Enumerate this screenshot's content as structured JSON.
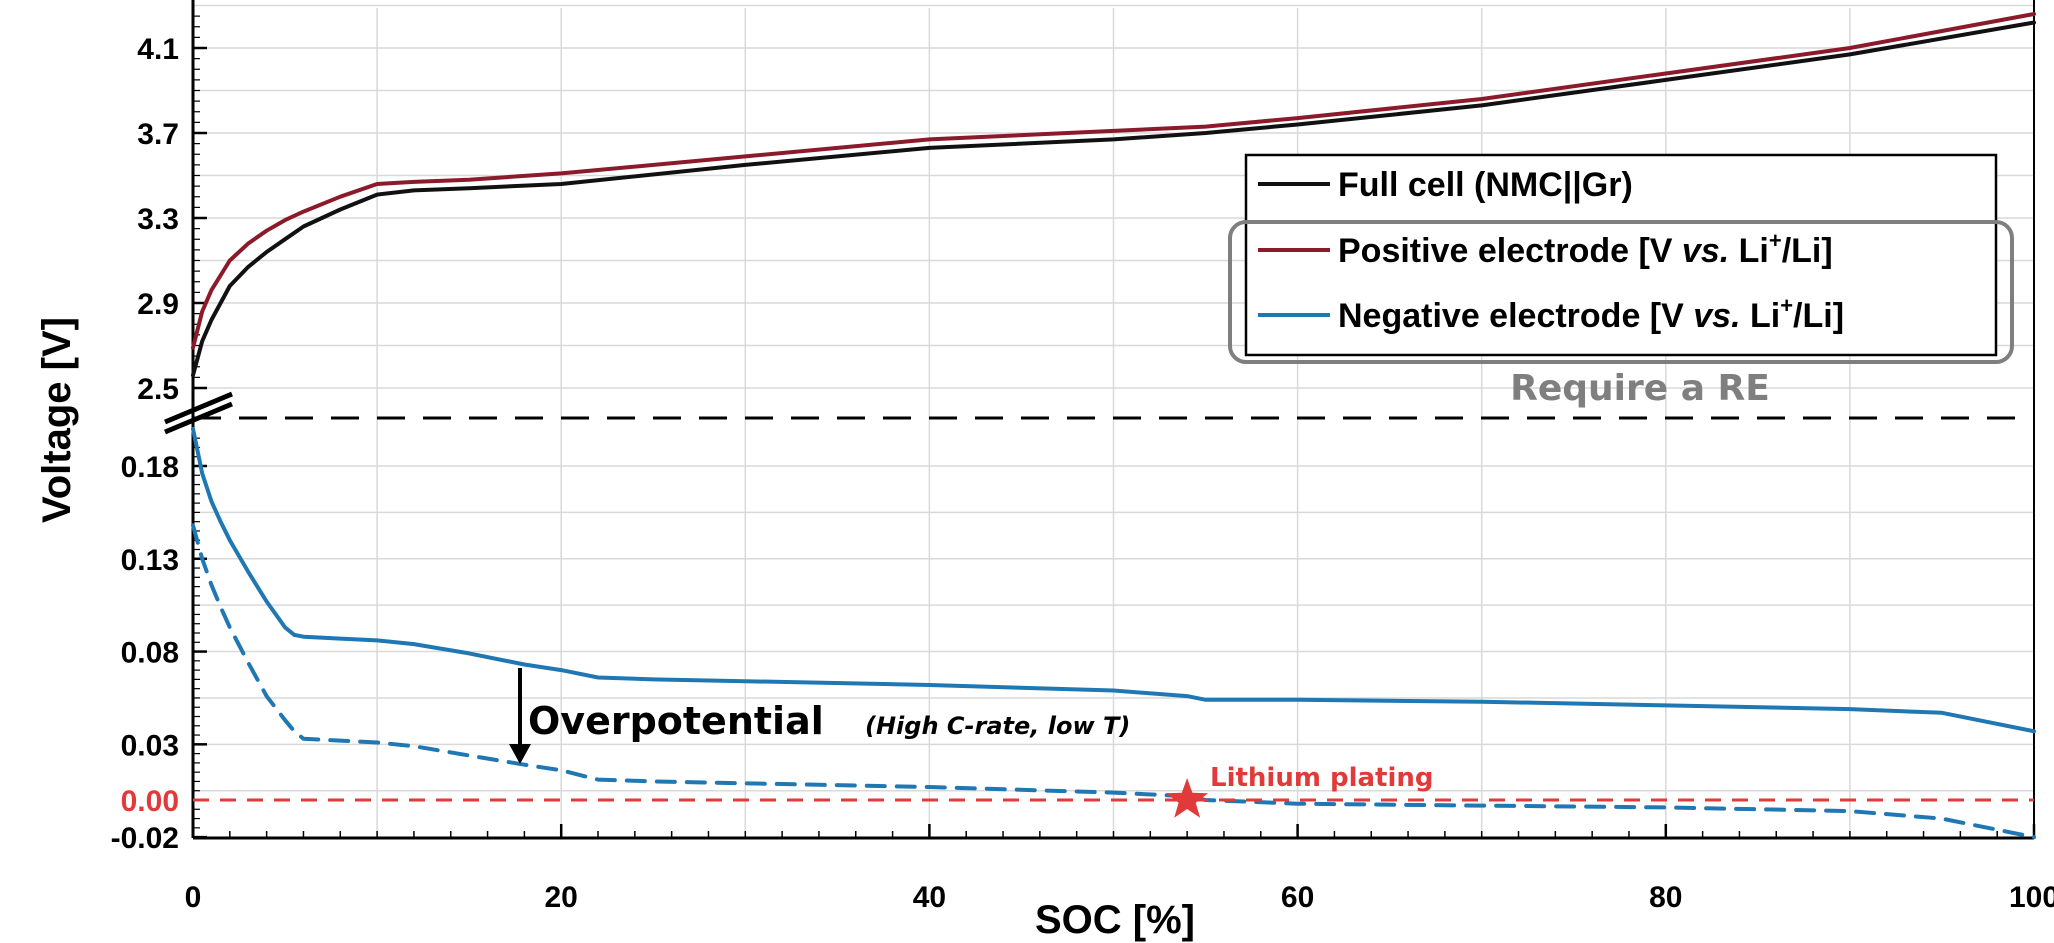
{
  "chart_data": {
    "type": "line",
    "xlabel": "SOC [%]",
    "ylabel": "Voltage [V]",
    "xlim": [
      0,
      100
    ],
    "upper_ylim": [
      2.3,
      4.4
    ],
    "lower_ylim": [
      -0.02,
      0.2
    ],
    "x_ticks": [
      "0",
      "20",
      "40",
      "60",
      "80",
      "100"
    ],
    "upper_y_ticks": [
      "4.1",
      "3.7",
      "3.3",
      "2.9",
      "2.5"
    ],
    "lower_y_ticks": [
      "0.18",
      "0.13",
      "0.08",
      "0.03",
      "0.00",
      "-0.02"
    ],
    "grid": true,
    "axis_break": true,
    "legend_position": "top-right",
    "colors": {
      "full_cell": "#111111",
      "positive": "#8b1a2b",
      "negative": "#1f77b4",
      "plating": "#e03a3a",
      "re_box": "#7f7f7f"
    },
    "series": [
      {
        "name": "Full cell (NMC||Gr)",
        "panel": "upper",
        "style": "solid",
        "x": [
          0,
          0.5,
          1,
          2,
          3,
          4,
          5,
          6,
          8,
          10,
          12,
          15,
          20,
          30,
          40,
          50,
          55,
          60,
          70,
          80,
          90,
          100
        ],
        "y": [
          2.56,
          2.72,
          2.82,
          2.98,
          3.07,
          3.14,
          3.2,
          3.26,
          3.34,
          3.41,
          3.43,
          3.44,
          3.46,
          3.55,
          3.63,
          3.67,
          3.7,
          3.74,
          3.83,
          3.95,
          4.07,
          4.22
        ]
      },
      {
        "name": "Positive electrode [V vs. Li+/Li]",
        "panel": "upper",
        "style": "solid",
        "x": [
          0,
          0.5,
          1,
          2,
          3,
          4,
          5,
          6,
          8,
          10,
          12,
          15,
          20,
          30,
          40,
          50,
          55,
          60,
          70,
          80,
          90,
          100
        ],
        "y": [
          2.69,
          2.86,
          2.96,
          3.1,
          3.18,
          3.24,
          3.29,
          3.33,
          3.4,
          3.46,
          3.47,
          3.48,
          3.51,
          3.59,
          3.67,
          3.71,
          3.73,
          3.77,
          3.86,
          3.98,
          4.1,
          4.26
        ]
      },
      {
        "name": "Negative electrode [V vs. Li+/Li]",
        "panel": "lower",
        "style": "solid",
        "x": [
          0,
          0.5,
          1,
          1.5,
          2,
          3,
          4,
          5,
          5.5,
          6,
          8,
          10,
          12,
          15,
          18,
          20,
          22,
          25,
          30,
          40,
          50,
          54,
          55,
          60,
          70,
          80,
          90,
          95,
          100
        ],
        "y": [
          0.2,
          0.176,
          0.161,
          0.15,
          0.14,
          0.123,
          0.107,
          0.093,
          0.089,
          0.088,
          0.087,
          0.086,
          0.084,
          0.079,
          0.073,
          0.07,
          0.066,
          0.065,
          0.064,
          0.062,
          0.059,
          0.056,
          0.054,
          0.054,
          0.053,
          0.051,
          0.049,
          0.047,
          0.037
        ]
      },
      {
        "name": "",
        "panel": "lower",
        "style": "dashed",
        "x": [
          0,
          0.5,
          1,
          1.5,
          2,
          3,
          4,
          5,
          5.5,
          6,
          8,
          10,
          12,
          15,
          18,
          20,
          22,
          25,
          30,
          40,
          50,
          54,
          55,
          60,
          70,
          80,
          90,
          95,
          100
        ],
        "y": [
          0.148,
          0.13,
          0.116,
          0.104,
          0.093,
          0.074,
          0.056,
          0.043,
          0.037,
          0.033,
          0.032,
          0.031,
          0.029,
          0.024,
          0.019,
          0.016,
          0.011,
          0.01,
          0.009,
          0.007,
          0.004,
          0.002,
          0.0,
          -0.002,
          -0.003,
          -0.004,
          -0.006,
          -0.01,
          -0.02
        ]
      }
    ],
    "legend": [
      "Full cell (NMC||Gr)",
      "Positive electrode [V vs. Li+/Li]",
      "Negative electrode [V vs. Li+/Li]"
    ],
    "annotations": {
      "require_re": "Require a RE",
      "overpotential": "Overpotential",
      "overpotential_note": "(High C-rate, low T)",
      "lithium_plating": "Lithium plating",
      "plating_point": {
        "x": 54,
        "y": 0.0
      }
    }
  }
}
